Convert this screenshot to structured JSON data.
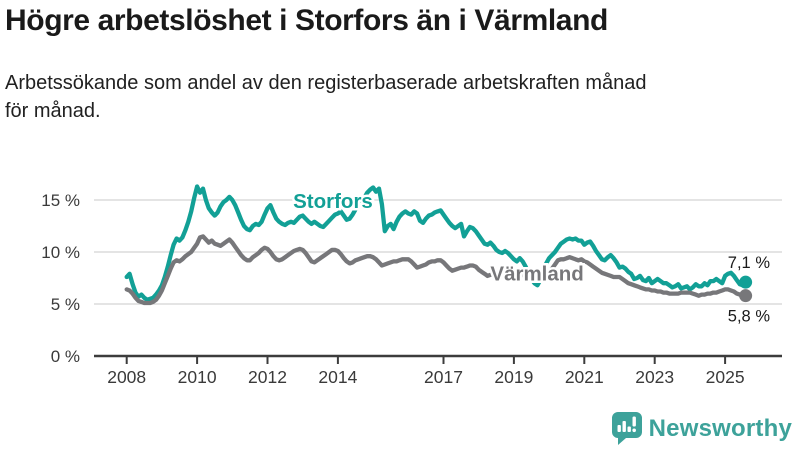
{
  "header": {
    "title": "Högre arbetslöshet i Storfors än i Värmland",
    "subtitle": "Arbetssökande som andel av den registerbaserade arbetskraften månad för månad."
  },
  "footer": {
    "brand": "Newsworthy"
  },
  "colors": {
    "storfors": "#12a096",
    "varmland": "#77777a",
    "gridline": "#dcdcdc",
    "axis": "#3c3c3c",
    "tick_label": "#3a3a3a",
    "annotation": "#1a1a1a",
    "brand": "#3da29a",
    "halo": "#ffffff"
  },
  "chart_data": {
    "type": "line",
    "title": "Högre arbetslöshet i Storfors än i Värmland",
    "subtitle": "Arbetssökande som andel av den registerbaserade arbetskraften månad för månad.",
    "unit": "%",
    "grid": "horizontal",
    "legend": "inline-labels",
    "x_axis": {
      "ticks": [
        2008,
        2010,
        2012,
        2014,
        2017,
        2019,
        2021,
        2023,
        2025
      ],
      "range": [
        2007.8,
        2026.2
      ]
    },
    "y_axis": {
      "ticks": [
        0,
        5,
        10,
        15
      ],
      "unit_suffix": " %",
      "range": [
        0,
        17.5
      ]
    },
    "x_start_year": 2008,
    "x_step_months": 1,
    "series": [
      {
        "name": "Storfors",
        "color_key": "storfors",
        "end_value": 7.1,
        "end_label": "7,1 %",
        "end_label_side": "above",
        "inline_label": {
          "x": 2013.86,
          "y": 14.25
        },
        "values": [
          7.6,
          7.9,
          6.9,
          6.1,
          5.7,
          5.9,
          5.6,
          5.4,
          5.5,
          5.6,
          5.9,
          6.3,
          6.8,
          7.6,
          8.6,
          9.7,
          10.7,
          11.3,
          11.1,
          11.4,
          12.1,
          12.9,
          13.9,
          15.2,
          16.3,
          15.7,
          16.1,
          15.0,
          14.2,
          13.8,
          13.5,
          13.8,
          14.4,
          14.8,
          15.0,
          15.3,
          15.0,
          14.5,
          13.8,
          13.1,
          12.5,
          12.2,
          12.1,
          12.5,
          12.7,
          12.6,
          12.9,
          13.6,
          14.2,
          14.5,
          13.8,
          13.2,
          12.9,
          12.7,
          12.6,
          12.8,
          12.9,
          12.8,
          13.1,
          13.4,
          13.5,
          13.2,
          12.9,
          12.7,
          12.9,
          12.7,
          12.5,
          12.4,
          12.7,
          13.0,
          13.3,
          13.6,
          13.7,
          13.9,
          13.5,
          13.1,
          13.2,
          13.6,
          14.1,
          14.5,
          14.9,
          15.2,
          15.7,
          16.0,
          16.2,
          15.8,
          16.1,
          14.6,
          12.0,
          12.5,
          12.7,
          12.2,
          12.9,
          13.4,
          13.7,
          13.9,
          13.7,
          13.6,
          13.9,
          13.7,
          13.0,
          12.8,
          13.2,
          13.5,
          13.6,
          13.8,
          13.9,
          14.0,
          13.6,
          13.2,
          12.8,
          12.5,
          12.3,
          12.5,
          12.7,
          11.5,
          12.0,
          12.4,
          12.3,
          12.0,
          11.6,
          11.2,
          10.8,
          10.7,
          10.9,
          10.6,
          10.2,
          10.0,
          9.9,
          10.1,
          9.9,
          9.6,
          9.3,
          9.1,
          9.4,
          9.1,
          8.6,
          8.0,
          7.4,
          7.0,
          6.8,
          7.3,
          8.2,
          8.9,
          9.4,
          9.7,
          10.0,
          10.4,
          10.8,
          11.0,
          11.2,
          11.3,
          11.2,
          11.3,
          11.1,
          11.1,
          10.7,
          10.9,
          11.0,
          10.6,
          10.1,
          9.7,
          9.3,
          9.2,
          9.5,
          9.7,
          9.4,
          9.0,
          8.5,
          8.6,
          8.4,
          8.1,
          7.9,
          7.4,
          7.5,
          7.7,
          7.3,
          7.2,
          7.5,
          7.0,
          7.2,
          7.4,
          7.2,
          7.0,
          7.0,
          6.8,
          6.6,
          6.7,
          6.9,
          6.5,
          6.6,
          6.7,
          6.4,
          6.6,
          6.9,
          6.7,
          6.7,
          7.0,
          6.8,
          7.2,
          7.2,
          7.4,
          7.2,
          7.0,
          7.7,
          7.9,
          8.0,
          7.7,
          7.3,
          6.9,
          6.8,
          7.1
        ]
      },
      {
        "name": "Värmland",
        "color_key": "varmland",
        "end_value": 5.8,
        "end_label": "5,8 %",
        "end_label_side": "below",
        "inline_label": {
          "x": 2019.66,
          "y": 7.25
        },
        "values": [
          6.4,
          6.3,
          6.0,
          5.6,
          5.3,
          5.2,
          5.1,
          5.1,
          5.1,
          5.2,
          5.4,
          5.8,
          6.3,
          7.0,
          7.7,
          8.4,
          9.0,
          9.2,
          9.1,
          9.3,
          9.6,
          9.8,
          10.0,
          10.4,
          10.8,
          11.4,
          11.5,
          11.2,
          10.9,
          11.1,
          10.8,
          10.7,
          10.6,
          10.8,
          11.0,
          11.2,
          10.9,
          10.5,
          10.1,
          9.7,
          9.4,
          9.2,
          9.2,
          9.5,
          9.7,
          9.9,
          10.2,
          10.4,
          10.3,
          10.0,
          9.6,
          9.3,
          9.2,
          9.3,
          9.5,
          9.7,
          9.9,
          10.1,
          10.2,
          10.3,
          10.2,
          9.9,
          9.5,
          9.1,
          9.0,
          9.2,
          9.4,
          9.6,
          9.8,
          10.0,
          10.2,
          10.2,
          10.1,
          9.8,
          9.4,
          9.1,
          8.9,
          9.0,
          9.2,
          9.3,
          9.4,
          9.5,
          9.6,
          9.6,
          9.5,
          9.3,
          9.0,
          8.7,
          8.8,
          8.9,
          9.0,
          9.1,
          9.1,
          9.2,
          9.3,
          9.3,
          9.3,
          9.1,
          8.8,
          8.5,
          8.6,
          8.7,
          8.8,
          9.0,
          9.1,
          9.1,
          9.2,
          9.2,
          9.0,
          8.7,
          8.4,
          8.2,
          8.3,
          8.4,
          8.5,
          8.5,
          8.6,
          8.7,
          8.7,
          8.6,
          8.3,
          8.1,
          7.9,
          7.7,
          7.8,
          7.9,
          7.9,
          8.0,
          8.0,
          8.1,
          8.1,
          8.1,
          8.2,
          8.1,
          7.9,
          7.8,
          7.6,
          7.5,
          7.5,
          7.6,
          7.6,
          7.7,
          7.8,
          7.9,
          8.1,
          8.4,
          8.8,
          9.2,
          9.3,
          9.3,
          9.4,
          9.5,
          9.4,
          9.3,
          9.2,
          9.3,
          9.1,
          9.0,
          8.8,
          8.6,
          8.4,
          8.2,
          8.0,
          7.9,
          7.8,
          7.7,
          7.6,
          7.6,
          7.6,
          7.4,
          7.2,
          7.0,
          6.9,
          6.8,
          6.7,
          6.6,
          6.5,
          6.4,
          6.4,
          6.3,
          6.3,
          6.2,
          6.2,
          6.1,
          6.1,
          6.0,
          6.0,
          6.0,
          6.0,
          6.1,
          6.1,
          6.1,
          6.1,
          6.0,
          5.9,
          5.8,
          5.9,
          5.9,
          6.0,
          6.0,
          6.1,
          6.1,
          6.2,
          6.3,
          6.4,
          6.4,
          6.3,
          6.2,
          6.0,
          5.9,
          5.8,
          5.8
        ]
      }
    ]
  }
}
